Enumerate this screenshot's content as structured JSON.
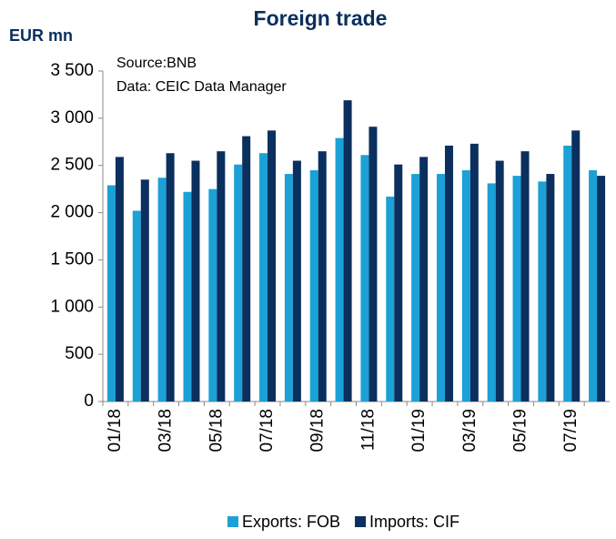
{
  "chart_data": {
    "type": "bar",
    "title": "Foreign trade",
    "y_label": "EUR mn",
    "annotations": [
      "Source:BNB",
      "Data: CEIC Data Manager"
    ],
    "categories": [
      "01/18",
      null,
      "03/18",
      null,
      "05/18",
      null,
      "07/18",
      null,
      "09/18",
      null,
      "11/18",
      null,
      "01/19",
      null,
      "03/19",
      null,
      "05/19",
      null,
      "07/19",
      null
    ],
    "series": [
      {
        "name": "Exports: FOB",
        "color": "#1ba1d6",
        "values": [
          2290,
          2020,
          2370,
          2220,
          2250,
          2510,
          2630,
          2410,
          2450,
          2790,
          2610,
          2170,
          2410,
          2410,
          2450,
          2310,
          2390,
          2330,
          2710,
          2450
        ]
      },
      {
        "name": "Imports: CIF",
        "color": "#0b2f5e",
        "values": [
          2590,
          2350,
          2630,
          2550,
          2650,
          2810,
          2870,
          2550,
          2650,
          3190,
          2910,
          2510,
          2590,
          2710,
          2730,
          2550,
          2650,
          2410,
          2870,
          2390
        ]
      }
    ],
    "ylim": [
      0,
      3500
    ],
    "yticks": [
      0,
      500,
      {
        "value": 1000,
        "label": "1 000"
      },
      {
        "value": 1500,
        "label": "1 500"
      },
      {
        "value": 2000,
        "label": "2 000"
      },
      {
        "value": 2500,
        "label": "2 500"
      },
      {
        "value": 3000,
        "label": "3 000"
      },
      {
        "value": 3500,
        "label": "3 500"
      }
    ],
    "grid": false,
    "legend": "bottom"
  }
}
